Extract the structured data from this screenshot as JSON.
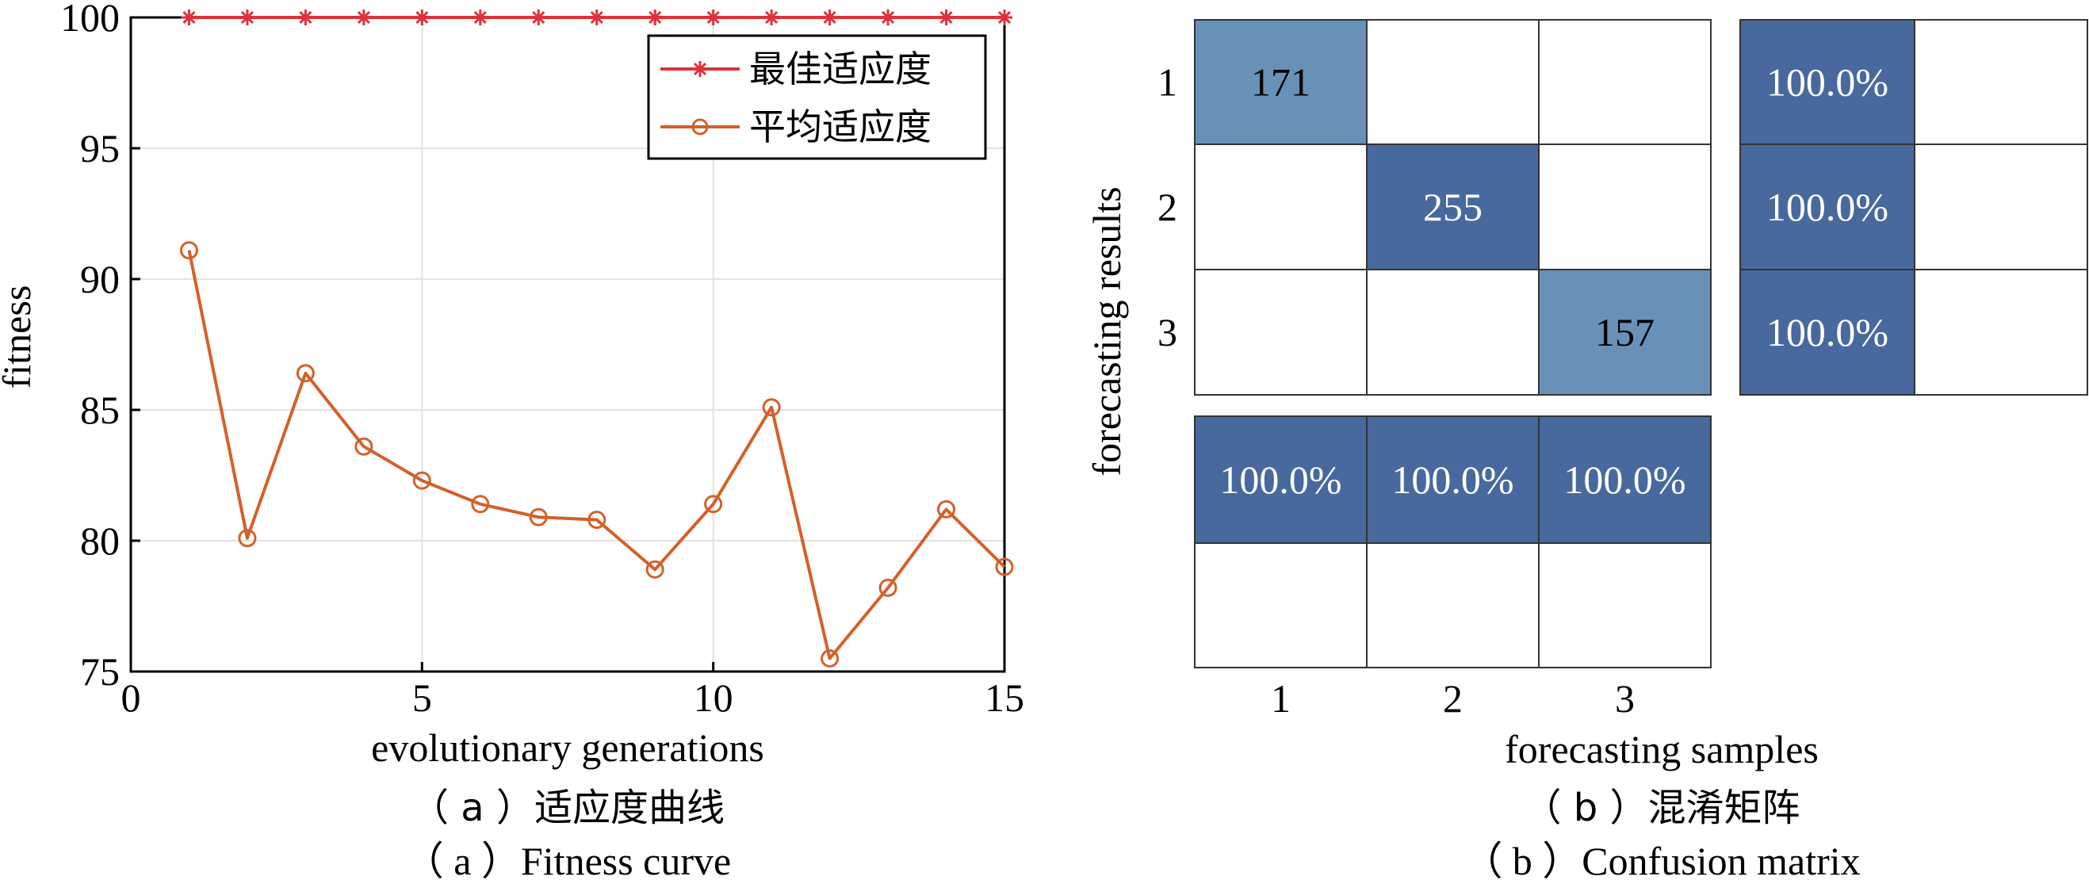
{
  "chart_data": [
    {
      "type": "line",
      "xlabel": "evolutionary generations",
      "ylabel": "fitness",
      "xlim": [
        0,
        15
      ],
      "ylim": [
        75,
        100
      ],
      "xticks": [
        0,
        5,
        10,
        15
      ],
      "yticks": [
        75,
        80,
        85,
        90,
        95,
        100
      ],
      "grid": true,
      "legend_position": "top-right",
      "x": [
        1,
        2,
        3,
        4,
        5,
        6,
        7,
        8,
        9,
        10,
        11,
        12,
        13,
        14,
        15
      ],
      "series": [
        {
          "name": "最佳适应度",
          "color": "#e0303a",
          "marker": "asterisk",
          "values": [
            100,
            100,
            100,
            100,
            100,
            100,
            100,
            100,
            100,
            100,
            100,
            100,
            100,
            100,
            100
          ]
        },
        {
          "name": "平均适应度",
          "color": "#d4602a",
          "marker": "circle",
          "values": [
            91.1,
            80.1,
            86.4,
            83.6,
            82.3,
            81.4,
            80.9,
            80.8,
            78.9,
            81.4,
            85.1,
            75.5,
            78.2,
            81.2,
            79.0
          ]
        }
      ],
      "caption_cn": "（ a ）适应度曲线",
      "caption_en": "（ a ）Fitness curve"
    },
    {
      "type": "heatmap",
      "xlabel": "forecasting samples",
      "ylabel": "forecasting results",
      "xticks": [
        "1",
        "2",
        "3"
      ],
      "yticks": [
        "1",
        "2",
        "3"
      ],
      "matrix": [
        [
          171,
          null,
          null
        ],
        [
          null,
          255,
          null
        ],
        [
          null,
          null,
          157
        ]
      ],
      "row_summary": [
        "100.0%",
        "100.0%",
        "100.0%"
      ],
      "col_summary": [
        "100.0%",
        "100.0%",
        "100.0%"
      ],
      "colors": {
        "dark": "#48699e",
        "light": "#6891b8"
      },
      "caption_cn": "（ b ）混淆矩阵",
      "caption_en": "（ b ）Confusion matrix"
    }
  ]
}
